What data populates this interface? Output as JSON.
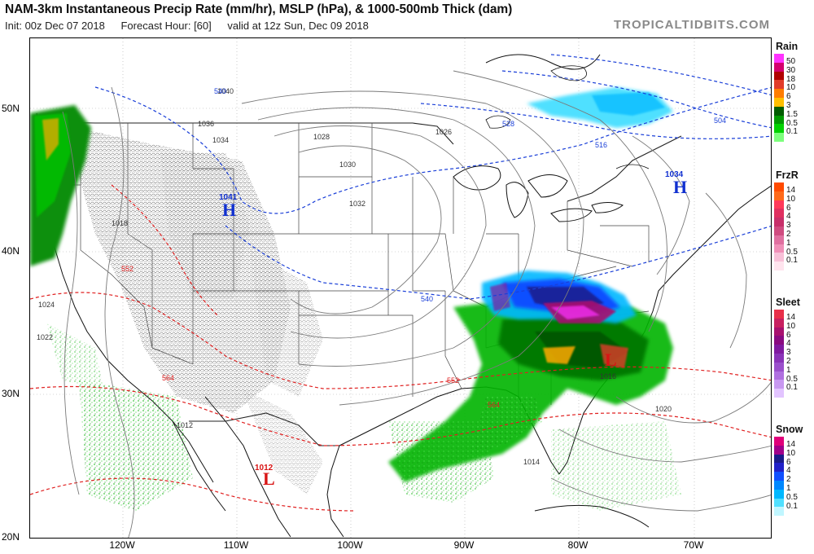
{
  "header": {
    "title": "NAM-3km Instantaneous Precip Rate (mm/hr), MSLP (hPa), & 1000-500mb Thick (dam)",
    "init": "Init: 00z Dec 07 2018",
    "forecast_hour": "Forecast Hour: [60]",
    "valid": "valid at 12z Sun, Dec 09 2018",
    "brand": "TROPICALTIDBITS.COM"
  },
  "axes": {
    "lat_labels": [
      "50N",
      "40N",
      "30N",
      "20N"
    ],
    "lon_labels": [
      "120W",
      "110W",
      "100W",
      "90W",
      "80W",
      "70W"
    ]
  },
  "pressure_centers": {
    "low_symbol": "L",
    "high_symbol": "H",
    "low_value": "1012",
    "high_value": "1034",
    "west_high_value": "1041"
  },
  "isobar_labels": [
    "1028",
    "1030",
    "1032",
    "1034",
    "1036",
    "1026",
    "1024",
    "1022",
    "1020",
    "1018",
    "1016",
    "1014",
    "1012",
    "1040"
  ],
  "thickness_labels": [
    "540",
    "528",
    "516",
    "504",
    "552",
    "564"
  ],
  "legends": {
    "rain": {
      "title": "Rain",
      "labels": [
        "50",
        "30",
        "18",
        "10",
        "6",
        "3",
        "1.5",
        "0.5",
        "0.1"
      ],
      "colors": [
        "#ff33ff",
        "#d4006e",
        "#b00000",
        "#e23c2a",
        "#ff7d00",
        "#ffbf00",
        "#005c00",
        "#009a00",
        "#00d200",
        "#7cff7c"
      ]
    },
    "frzr": {
      "title": "FrzR",
      "labels": [
        "14",
        "10",
        "6",
        "4",
        "3",
        "2",
        "1",
        "0.5",
        "0.1"
      ],
      "colors": [
        "#ff4a00",
        "#ff6a1a",
        "#ff3a5a",
        "#e03060",
        "#c8306a",
        "#d04c80",
        "#e070a0",
        "#f090b8",
        "#f8c0d8",
        "#ffe4ee"
      ]
    },
    "sleet": {
      "title": "Sleet",
      "labels": [
        "14",
        "10",
        "6",
        "4",
        "3",
        "2",
        "1",
        "0.5",
        "0.1"
      ],
      "colors": [
        "#e8304a",
        "#c82060",
        "#a8106e",
        "#8a0a80",
        "#801aa0",
        "#8a34b8",
        "#9a50cc",
        "#b070e0",
        "#c898f0",
        "#e2c4ff"
      ]
    },
    "snow": {
      "title": "Snow",
      "labels": [
        "14",
        "10",
        "6",
        "4",
        "2",
        "1",
        "0.5",
        "0.1"
      ],
      "colors": [
        "#e0007a",
        "#a0008a",
        "#1a1a8a",
        "#2020c8",
        "#1050ff",
        "#0088ff",
        "#00b8ff",
        "#50e0ff",
        "#c0f6ff"
      ]
    }
  }
}
